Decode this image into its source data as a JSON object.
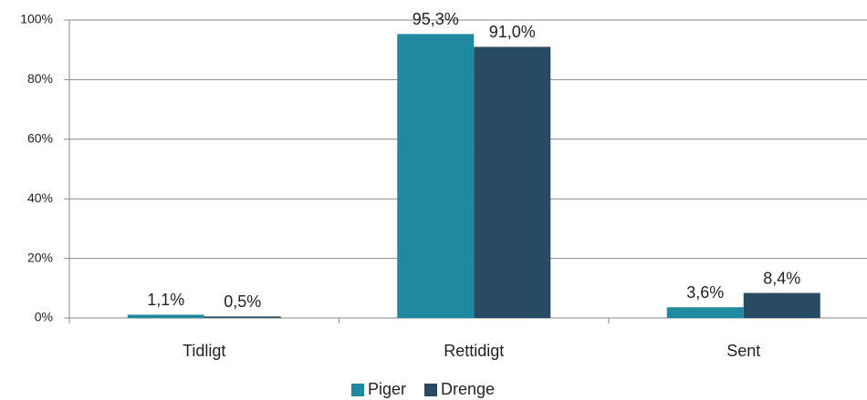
{
  "chart_data": {
    "type": "bar",
    "categories": [
      "Tidligt",
      "Rettidigt",
      "Sent"
    ],
    "series": [
      {
        "name": "Piger",
        "color": "#1f89a0",
        "values": [
          1.1,
          95.3,
          3.6
        ],
        "value_labels": [
          "1,1%",
          "95,3%",
          "3,6%"
        ]
      },
      {
        "name": "Drenge",
        "color": "#284a63",
        "values": [
          0.5,
          91.0,
          8.4
        ],
        "value_labels": [
          "0,5%",
          "91,0%",
          "8,4%"
        ]
      }
    ],
    "ylim": [
      0,
      100
    ],
    "yticks": [
      {
        "value": 0,
        "label": "0%"
      },
      {
        "value": 20,
        "label": "20%"
      },
      {
        "value": 40,
        "label": "40%"
      },
      {
        "value": 60,
        "label": "60%"
      },
      {
        "value": 80,
        "label": "80%"
      },
      {
        "value": 100,
        "label": "100%"
      }
    ],
    "grid": true,
    "legend": "bottom"
  }
}
